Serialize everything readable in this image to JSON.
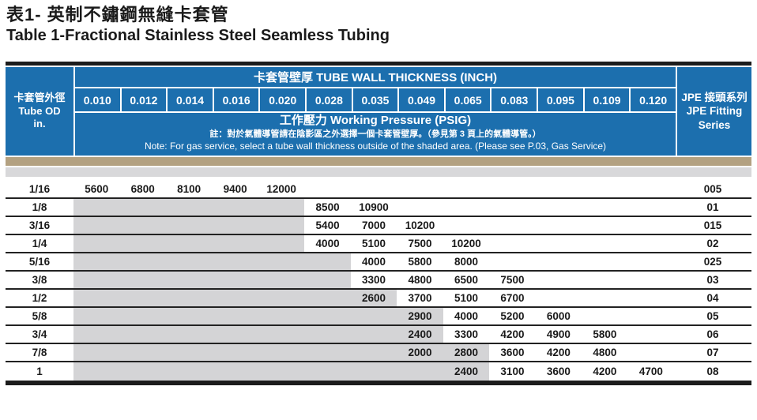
{
  "page": {
    "title_zh": "表1- 英制不鏽鋼無縫卡套管",
    "title_en": "Table 1-Fractional Stainless Steel Seamless Tubing"
  },
  "header": {
    "od_label_zh": "卡套管外徑",
    "od_label_en": "Tube OD",
    "od_unit": "in.",
    "thickness_title": "卡套管壁厚  TUBE WALL THICKNESS (INCH)",
    "pressure_title": "工作壓力 Working Pressure (PSIG)",
    "note_zh": "註：對於氣體導管請在陰影區之外選擇一個卡套管壁厚。（參見第 3 頁上的氣體導管。）",
    "note_en": "Note: For gas service, select a tube wall thickness outside of the shaded area. (Please see P.03, Gas Service)",
    "jpe_line1": "JPE 接頭系列",
    "jpe_line2": "JPE Fitting",
    "jpe_line3": "Series"
  },
  "chart_data": {
    "type": "table",
    "title": "Table 1-Fractional Stainless Steel Seamless Tubing",
    "x_columns_tube_wall_thickness_inch": [
      "0.010",
      "0.012",
      "0.014",
      "0.016",
      "0.020",
      "0.028",
      "0.035",
      "0.049",
      "0.065",
      "0.083",
      "0.095",
      "0.109",
      "0.120"
    ],
    "unit": "PSIG",
    "rows": [
      {
        "od": "1/16",
        "shaded_cols": 0,
        "pressures": [
          "5600",
          "6800",
          "8100",
          "9400",
          "12000",
          "",
          "",
          "",
          "",
          "",
          "",
          "",
          ""
        ],
        "series": "005"
      },
      {
        "od": "1/8",
        "shaded_cols": 5,
        "pressures": [
          "",
          "",
          "",
          "",
          "",
          "8500",
          "10900",
          "",
          "",
          "",
          "",
          "",
          ""
        ],
        "series": "01"
      },
      {
        "od": "3/16",
        "shaded_cols": 5,
        "pressures": [
          "",
          "",
          "",
          "",
          "",
          "5400",
          "7000",
          "10200",
          "",
          "",
          "",
          "",
          ""
        ],
        "series": "015"
      },
      {
        "od": "1/4",
        "shaded_cols": 5,
        "pressures": [
          "",
          "",
          "",
          "",
          "",
          "4000",
          "5100",
          "7500",
          "10200",
          "",
          "",
          "",
          ""
        ],
        "series": "02"
      },
      {
        "od": "5/16",
        "shaded_cols": 6,
        "pressures": [
          "",
          "",
          "",
          "",
          "",
          "",
          "4000",
          "5800",
          "8000",
          "",
          "",
          "",
          ""
        ],
        "series": "025"
      },
      {
        "od": "3/8",
        "shaded_cols": 6,
        "pressures": [
          "",
          "",
          "",
          "",
          "",
          "",
          "3300",
          "4800",
          "6500",
          "7500",
          "",
          "",
          ""
        ],
        "series": "03"
      },
      {
        "od": "1/2",
        "shaded_cols": 7,
        "pressures": [
          "",
          "",
          "",
          "",
          "",
          "",
          "2600",
          "3700",
          "5100",
          "6700",
          "",
          "",
          ""
        ],
        "series": "04"
      },
      {
        "od": "5/8",
        "shaded_cols": 8,
        "pressures": [
          "",
          "",
          "",
          "",
          "",
          "",
          "",
          "2900",
          "4000",
          "5200",
          "6000",
          "",
          ""
        ],
        "series": "05"
      },
      {
        "od": "3/4",
        "shaded_cols": 8,
        "pressures": [
          "",
          "",
          "",
          "",
          "",
          "",
          "",
          "2400",
          "3300",
          "4200",
          "4900",
          "5800",
          ""
        ],
        "series": "06"
      },
      {
        "od": "7/8",
        "shaded_cols": 9,
        "pressures": [
          "",
          "",
          "",
          "",
          "",
          "",
          "",
          "2000",
          "2800",
          "3600",
          "4200",
          "4800",
          ""
        ],
        "series": "07"
      },
      {
        "od": "1",
        "shaded_cols": 9,
        "pressures": [
          "",
          "",
          "",
          "",
          "",
          "",
          "",
          "",
          "2400",
          "3100",
          "3600",
          "4200",
          "4700"
        ],
        "series": "08"
      }
    ]
  },
  "colors": {
    "header_blue": "#1c6fae",
    "band_tan": "#b3a181",
    "band_gray": "#d8d8da",
    "shaded_cell_gray": "#d4d4d6",
    "rule_black": "#1c1c1c"
  }
}
